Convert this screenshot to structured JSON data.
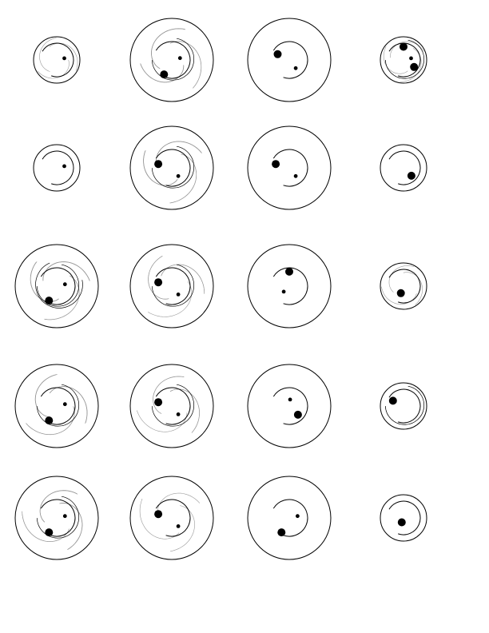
{
  "figure": {
    "colors": {
      "background": "#ffffff",
      "stroke": "#000000",
      "swirl": "#9a9a9a",
      "dot": "#000000"
    },
    "rows": [
      {
        "cells": [
          {
            "variant": "small",
            "swirl": "light",
            "arcs": 1,
            "dots": [
              "inner-right"
            ]
          },
          {
            "variant": "large",
            "swirl": "heavy",
            "arcs": 2,
            "dots": [
              "inner-right",
              "big-bottom-left"
            ]
          },
          {
            "variant": "large",
            "swirl": "none",
            "arcs": 1,
            "dots": [
              "big-top-left",
              "inner-bottom-right"
            ]
          },
          {
            "variant": "small",
            "swirl": "light",
            "arcs": 2,
            "dots": [
              "big-top",
              "big-right",
              "inner-right"
            ]
          }
        ]
      },
      {
        "cells": [
          {
            "variant": "small",
            "swirl": "none",
            "arcs": 1,
            "dots": [
              "inner-right"
            ]
          },
          {
            "variant": "large",
            "swirl": "heavy",
            "arcs": 2,
            "dots": [
              "big-left",
              "inner-bottom-right"
            ]
          },
          {
            "variant": "large",
            "swirl": "none",
            "arcs": 1,
            "dots": [
              "big-left",
              "inner-bottom-right"
            ]
          },
          {
            "variant": "small",
            "swirl": "none",
            "arcs": 1,
            "dots": [
              "big-bottom-right"
            ]
          }
        ]
      },
      {
        "cells": [
          {
            "variant": "large",
            "swirl": "heavy",
            "arcs": 3,
            "dots": [
              "inner-right",
              "big-bottom-left"
            ]
          },
          {
            "variant": "large",
            "swirl": "medium",
            "arcs": 2,
            "dots": [
              "big-left",
              "inner-bottom-right"
            ]
          },
          {
            "variant": "large",
            "swirl": "none",
            "arcs": 1,
            "dots": [
              "big-top",
              "inner-bottom-left"
            ]
          },
          {
            "variant": "small",
            "swirl": "light",
            "arcs": 1,
            "dots": [
              "big-bottom"
            ]
          }
        ]
      },
      {
        "cells": [
          {
            "variant": "large",
            "swirl": "heavy",
            "arcs": 2,
            "dots": [
              "inner-right",
              "big-bottom-left"
            ]
          },
          {
            "variant": "large",
            "swirl": "medium",
            "arcs": 2,
            "dots": [
              "big-left",
              "inner-bottom-right"
            ]
          },
          {
            "variant": "large",
            "swirl": "none",
            "arcs": 1,
            "dots": [
              "inner-top",
              "big-bottom-right"
            ]
          },
          {
            "variant": "small",
            "swirl": "none",
            "arcs": 2,
            "dots": [
              "big-top-left"
            ]
          }
        ]
      },
      {
        "cells": [
          {
            "variant": "large",
            "swirl": "heavy",
            "arcs": 2,
            "dots": [
              "inner-right",
              "big-bottom-left"
            ]
          },
          {
            "variant": "large",
            "swirl": "light",
            "arcs": 1,
            "dots": [
              "big-left",
              "inner-bottom-right"
            ]
          },
          {
            "variant": "large",
            "swirl": "none",
            "arcs": 1,
            "dots": [
              "big-bottom-left",
              "inner-right"
            ]
          },
          {
            "variant": "small",
            "swirl": "none",
            "arcs": 1,
            "dots": [
              "big-center"
            ]
          }
        ]
      }
    ]
  }
}
